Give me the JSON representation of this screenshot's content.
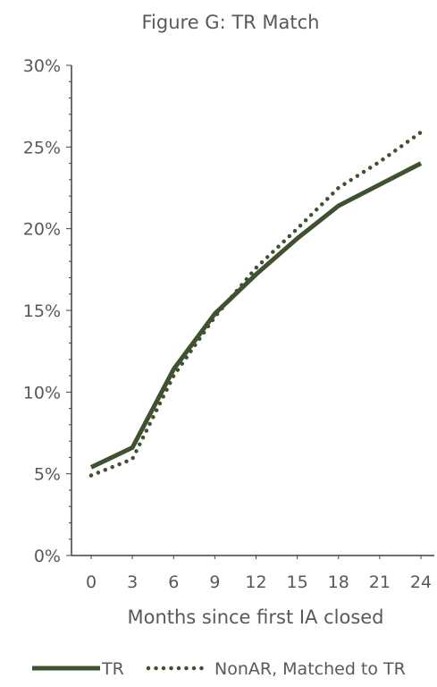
{
  "chart_data": {
    "type": "line",
    "title": "Figure G: TR Match",
    "xlabel": "Months since first IA closed",
    "ylabel": "",
    "x": [
      0,
      3,
      6,
      9,
      12,
      15,
      18,
      21,
      24
    ],
    "x_tick_labels": [
      "0",
      "3",
      "6",
      "9",
      "12",
      "15",
      "18",
      "21",
      "24"
    ],
    "ylim": [
      0,
      30
    ],
    "y_ticks": [
      0,
      5,
      10,
      15,
      20,
      25,
      30
    ],
    "y_tick_labels": [
      "0%",
      "5%",
      "10%",
      "15%",
      "20%",
      "25%",
      "30%"
    ],
    "grid": false,
    "legend_position": "bottom",
    "series": [
      {
        "name": "TR",
        "style": "solid",
        "color": "#3f5230",
        "values": [
          5.4,
          6.6,
          11.4,
          14.8,
          17.2,
          19.4,
          21.4,
          22.7,
          24.0
        ]
      },
      {
        "name": "NonAR, Matched to TR",
        "style": "dotted",
        "color": "#3f5230",
        "values": [
          4.9,
          5.9,
          11.0,
          14.6,
          17.6,
          20.0,
          22.5,
          24.1,
          25.9
        ]
      }
    ]
  }
}
